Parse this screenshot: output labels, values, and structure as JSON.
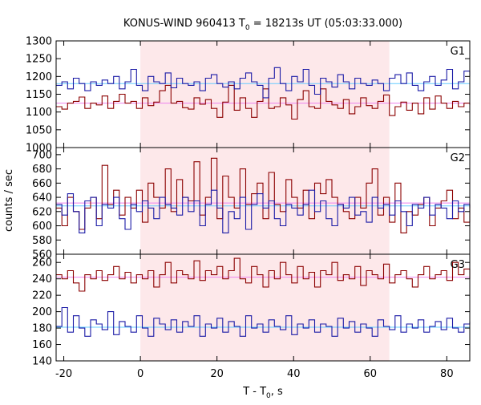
{
  "chart_data": {
    "type": "line",
    "title_main": "KONUS-WIND 960413 T",
    "title_sub": "0",
    "title_rest": " = 18213s UT (05:03:33.000)",
    "xlabel_main": "T - T",
    "xlabel_sub": "0",
    "xlabel_rest": ", s",
    "ylabel": "counts / sec",
    "xlim": [
      -22,
      86
    ],
    "x_ticks": [
      -20,
      0,
      20,
      40,
      60,
      80
    ],
    "highlight_interval": [
      0,
      65
    ],
    "colors": {
      "red_series": "#8b0000",
      "blue_series": "#1a1aa6",
      "red_background": "#ee82ee",
      "blue_background": "#66ccff",
      "highlight": "#fde8ea",
      "grid": "#000000"
    },
    "panels": [
      {
        "label": "G1",
        "ylim": [
          1000,
          1300
        ],
        "y_ticks": [
          1000,
          1050,
          1100,
          1150,
          1200,
          1250,
          1300
        ],
        "background_levels": {
          "red": 1125,
          "blue": 1180
        },
        "series": [
          {
            "color": "red",
            "start": -22,
            "step": 1.5,
            "values": [
              1115,
              1108,
              1125,
              1130,
              1142,
              1110,
              1125,
              1120,
              1145,
              1110,
              1130,
              1150,
              1125,
              1130,
              1110,
              1140,
              1118,
              1128,
              1160,
              1175,
              1125,
              1130,
              1112,
              1108,
              1140,
              1122,
              1135,
              1110,
              1085,
              1128,
              1175,
              1105,
              1140,
              1110,
              1085,
              1130,
              1165,
              1110,
              1115,
              1140,
              1120,
              1080,
              1135,
              1160,
              1115,
              1110,
              1165,
              1130,
              1120,
              1110,
              1135,
              1095,
              1115,
              1140,
              1118,
              1110,
              1130,
              1148,
              1090,
              1115,
              1128,
              1105,
              1125,
              1095,
              1140,
              1108,
              1145,
              1125,
              1110,
              1130,
              1115,
              1125,
              1120
            ]
          },
          {
            "color": "blue",
            "start": -22,
            "step": 1.5,
            "values": [
              1175,
              1185,
              1165,
              1195,
              1180,
              1160,
              1185,
              1175,
              1190,
              1180,
              1200,
              1165,
              1185,
              1220,
              1175,
              1160,
              1200,
              1185,
              1180,
              1210,
              1168,
              1195,
              1180,
              1175,
              1185,
              1160,
              1195,
              1205,
              1180,
              1170,
              1185,
              1165,
              1195,
              1210,
              1185,
              1175,
              1140,
              1195,
              1225,
              1180,
              1160,
              1200,
              1185,
              1220,
              1175,
              1150,
              1195,
              1185,
              1170,
              1205,
              1185,
              1165,
              1195,
              1180,
              1175,
              1190,
              1180,
              1160,
              1195,
              1205,
              1180,
              1210,
              1175,
              1160,
              1185,
              1200,
              1175,
              1190,
              1220,
              1165,
              1185,
              1215,
              1200
            ]
          }
        ]
      },
      {
        "label": "G2",
        "ylim": [
          560,
          710
        ],
        "y_ticks": [
          560,
          580,
          600,
          620,
          640,
          660,
          680,
          700
        ],
        "background_levels": {
          "red": 632,
          "blue": 628
        },
        "series": [
          {
            "color": "red",
            "start": -22,
            "step": 1.5,
            "values": [
              625,
              600,
              640,
              620,
              595,
              625,
              640,
              610,
              685,
              630,
              650,
              615,
              640,
              625,
              650,
              605,
              660,
              640,
              625,
              680,
              620,
              665,
              640,
              635,
              690,
              615,
              640,
              695,
              610,
              670,
              640,
              625,
              680,
              630,
              645,
              660,
              610,
              675,
              630,
              620,
              665,
              640,
              625,
              650,
              610,
              660,
              645,
              665,
              640,
              630,
              620,
              610,
              640,
              625,
              660,
              680,
              615,
              640,
              605,
              660,
              590,
              620,
              615,
              630,
              640,
              600,
              625,
              635,
              650,
              610,
              625,
              605,
              630
            ]
          },
          {
            "color": "blue",
            "start": -22,
            "step": 1.5,
            "values": [
              630,
              615,
              645,
              620,
              590,
              635,
              640,
              600,
              630,
              625,
              640,
              610,
              595,
              630,
              620,
              635,
              625,
              610,
              640,
              630,
              625,
              615,
              640,
              620,
              635,
              600,
              630,
              650,
              625,
              590,
              620,
              610,
              640,
              595,
              630,
              645,
              625,
              635,
              610,
              600,
              630,
              625,
              615,
              630,
              650,
              620,
              635,
              610,
              600,
              630,
              625,
              640,
              615,
              620,
              605,
              640,
              625,
              630,
              615,
              635,
              620,
              600,
              630,
              625,
              640,
              615,
              630,
              625,
              610,
              635,
              620,
              630,
              625
            ]
          }
        ]
      },
      {
        "label": "G3",
        "ylim": [
          140,
          270
        ],
        "y_ticks": [
          140,
          160,
          180,
          200,
          220,
          240,
          260
        ],
        "background_levels": {
          "red": 242,
          "blue": 181
        },
        "series": [
          {
            "color": "red",
            "start": -22,
            "step": 1.5,
            "values": [
              245,
              240,
              250,
              235,
              225,
              245,
              240,
              250,
              238,
              245,
              255,
              240,
              248,
              235,
              245,
              240,
              250,
              230,
              245,
              260,
              235,
              250,
              245,
              240,
              262,
              238,
              250,
              245,
              255,
              240,
              250,
              265,
              240,
              235,
              255,
              245,
              230,
              250,
              240,
              260,
              245,
              235,
              255,
              240,
              248,
              230,
              250,
              245,
              260,
              238,
              245,
              240,
              255,
              232,
              250,
              245,
              240,
              258,
              235,
              245,
              250,
              240,
              230,
              245,
              255,
              240,
              245,
              250,
              238,
              260,
              245,
              252,
              240
            ]
          },
          {
            "color": "blue",
            "start": -22,
            "step": 1.5,
            "values": [
              182,
              205,
              175,
              195,
              180,
              170,
              190,
              185,
              178,
              200,
              172,
              188,
              182,
              175,
              195,
              180,
              170,
              192,
              185,
              178,
              190,
              175,
              188,
              182,
              195,
              170,
              185,
              180,
              192,
              175,
              188,
              182,
              170,
              195,
              180,
              185,
              175,
              190,
              182,
              178,
              195,
              172,
              185,
              180,
              190,
              175,
              185,
              182,
              170,
              192,
              180,
              188,
              175,
              185,
              180,
              170,
              190,
              182,
              178,
              195,
              175,
              185,
              180,
              190,
              175,
              182,
              188,
              178,
              192,
              180,
              175,
              185,
              188
            ]
          }
        ]
      }
    ]
  }
}
